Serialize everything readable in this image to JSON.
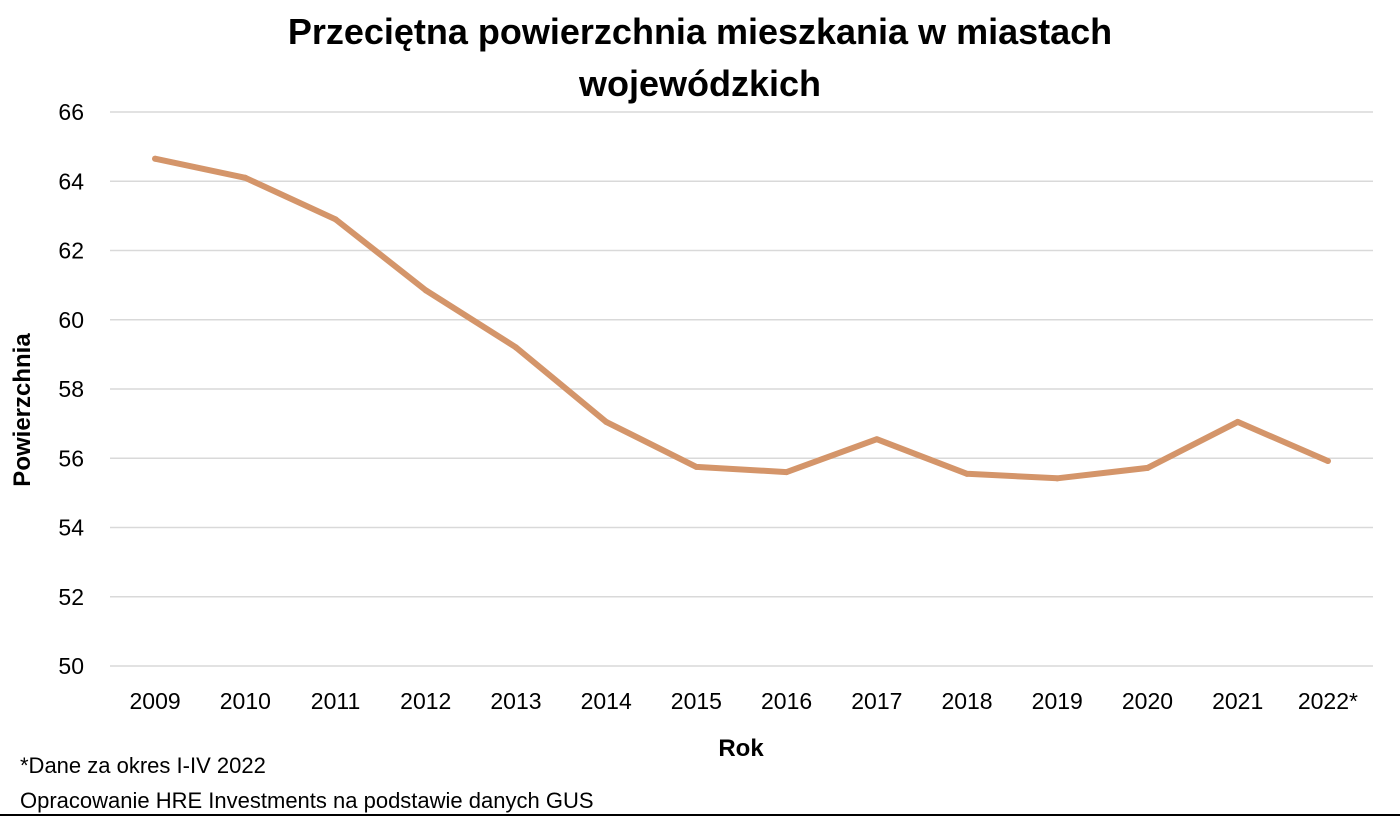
{
  "chart_data": {
    "type": "line",
    "title_lines": [
      "Przeciętna powierzchnia mieszkania w miastach",
      "wojewódzkich"
    ],
    "xlabel": "Rok",
    "ylabel": "Powierzchnia",
    "categories": [
      "2009",
      "2010",
      "2011",
      "2012",
      "2013",
      "2014",
      "2015",
      "2016",
      "2017",
      "2018",
      "2019",
      "2020",
      "2021",
      "2022*"
    ],
    "series": [
      {
        "values": [
          64.65,
          64.1,
          62.9,
          60.85,
          59.2,
          57.05,
          55.75,
          55.6,
          56.55,
          55.55,
          55.42,
          55.72,
          57.05,
          55.92
        ],
        "color": "#d4956a"
      }
    ],
    "ylim": [
      50,
      66
    ],
    "yticks": [
      50,
      52,
      54,
      56,
      58,
      60,
      62,
      64,
      66
    ],
    "grid": true,
    "legend": "none"
  },
  "notes": {
    "footnote": "*Dane za okres I-IV 2022",
    "source": "Opracowanie HRE Investments na podstawie danych GUS"
  }
}
